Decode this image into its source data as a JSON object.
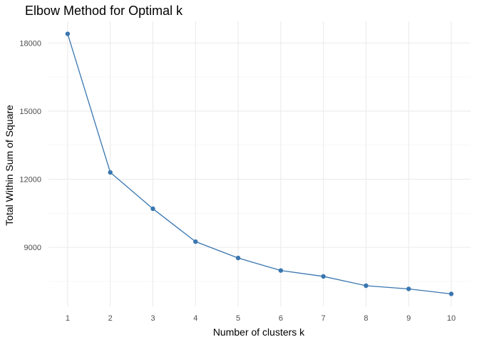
{
  "chart_data": {
    "type": "line",
    "title": "Elbow Method for Optimal k",
    "xlabel": "Number of clusters k",
    "ylabel": "Total Within Sum of Square",
    "x": [
      1,
      2,
      3,
      4,
      5,
      6,
      7,
      8,
      9,
      10
    ],
    "series": [
      {
        "values": [
          18400,
          12300,
          10700,
          9250,
          8530,
          7980,
          7720,
          7310,
          7170,
          6950
        ]
      }
    ],
    "x_ticks": [
      1,
      2,
      3,
      4,
      5,
      6,
      7,
      8,
      9,
      10
    ],
    "y_ticks": [
      9000,
      12000,
      15000,
      18000
    ],
    "xlim": [
      0.55,
      10.45
    ],
    "ylim": [
      6400,
      18950
    ],
    "grid": true,
    "line_color": "#3a76b0"
  }
}
